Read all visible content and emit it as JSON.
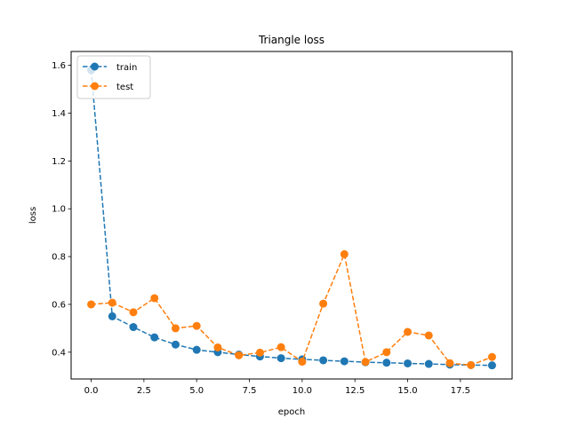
{
  "chart_data": {
    "type": "line",
    "title": "Triangle loss",
    "xlabel": "epoch",
    "ylabel": "loss",
    "xlim": [
      -0.95,
      19.95
    ],
    "ylim": [
      0.288,
      1.658
    ],
    "x_ticks": [
      0,
      2.5,
      5,
      7.5,
      10,
      12.5,
      15,
      17.5
    ],
    "x_tick_labels": [
      "0.0",
      "2.5",
      "5.0",
      "7.5",
      "10.0",
      "12.5",
      "15.0",
      "17.5"
    ],
    "y_ticks": [
      0.4,
      0.6,
      0.8,
      1.0,
      1.2,
      1.4,
      1.6
    ],
    "y_tick_labels": [
      "0.4",
      "0.6",
      "0.8",
      "1.0",
      "1.2",
      "1.4",
      "1.6"
    ],
    "grid": false,
    "legend_position": "top-left",
    "x": [
      0,
      1,
      2,
      3,
      4,
      5,
      6,
      7,
      8,
      9,
      10,
      11,
      12,
      13,
      14,
      15,
      16,
      17,
      18,
      19
    ],
    "series": [
      {
        "name": "train",
        "color": "#1f77b4",
        "values": [
          1.58,
          0.55,
          0.505,
          0.462,
          0.432,
          0.41,
          0.4,
          0.39,
          0.382,
          0.375,
          0.37,
          0.366,
          0.362,
          0.358,
          0.356,
          0.353,
          0.351,
          0.348,
          0.346,
          0.345
        ]
      },
      {
        "name": "test",
        "color": "#ff7f0e",
        "values": [
          0.6,
          0.607,
          0.567,
          0.626,
          0.5,
          0.51,
          0.42,
          0.387,
          0.398,
          0.421,
          0.36,
          0.603,
          0.81,
          0.359,
          0.4,
          0.485,
          0.47,
          0.354,
          0.346,
          0.38
        ]
      }
    ]
  }
}
